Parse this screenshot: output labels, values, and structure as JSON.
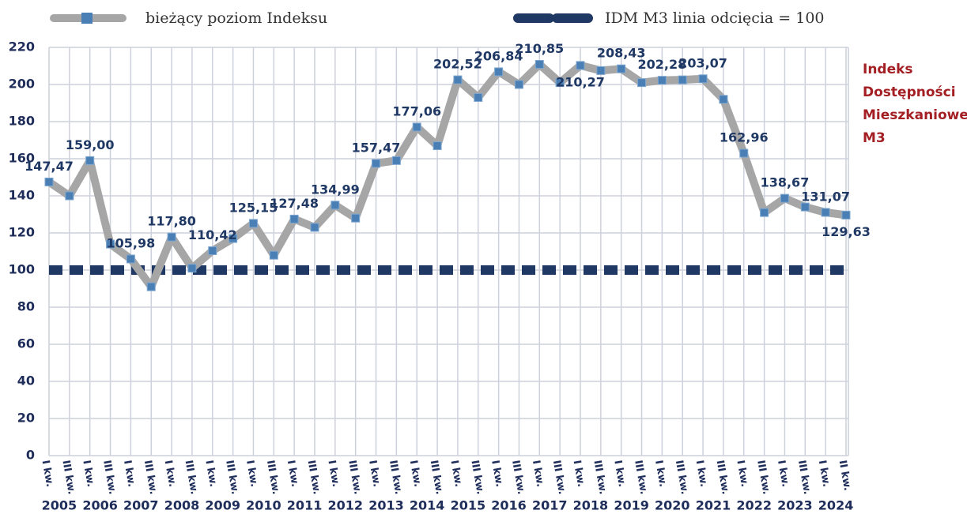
{
  "chart_data": {
    "type": "line",
    "categories": [
      "I kw.",
      "III kw.",
      "I kw.",
      "III kw.",
      "I kw.",
      "III kw.",
      "I kw.",
      "III kw.",
      "I kw.",
      "III kw.",
      "I kw.",
      "III kw.",
      "I kw.",
      "III kw.",
      "I kw.",
      "III kw.",
      "I kw.",
      "III kw.",
      "I kw.",
      "III kw.",
      "I kw.",
      "III kw.",
      "I kw.",
      "III kw.",
      "I kw.",
      "III kw.",
      "I kw.",
      "III kw.",
      "I kw.",
      "III kw.",
      "I kw.",
      "III kw.",
      "I kw.",
      "III kw.",
      "I kw.",
      "III kw.",
      "I kw.",
      "III kw.",
      "I kw.",
      "II kw."
    ],
    "years": [
      "2005",
      "2006",
      "2007",
      "2008",
      "2009",
      "2010",
      "2011",
      "2012",
      "2013",
      "2014",
      "2015",
      "2016",
      "2017",
      "2018",
      "2019",
      "2020",
      "2021",
      "2022",
      "2023",
      "2024"
    ],
    "series": [
      {
        "name": "bieżący poziom Indeksu",
        "color": "#a6a6a6",
        "marker_color": "#4a7fb5",
        "values": [
          147.47,
          140,
          159.0,
          114,
          105.98,
          91,
          117.8,
          101,
          110.42,
          117,
          125.15,
          108,
          127.48,
          123,
          134.99,
          128,
          157.47,
          159,
          177.06,
          167,
          202.52,
          193,
          206.84,
          200,
          210.85,
          201,
          210.27,
          207.5,
          208.43,
          201,
          202.28,
          202.5,
          203.07,
          192,
          162.96,
          131,
          138.67,
          134,
          131.07,
          129.63
        ],
        "value_labels": [
          "147,47",
          null,
          "159,00",
          null,
          "105,98",
          null,
          "117,80",
          null,
          "110,42",
          null,
          "125,15",
          null,
          "127,48",
          null,
          "134,99",
          null,
          "157,47",
          null,
          "177,06",
          null,
          "202,52",
          null,
          "206,84",
          null,
          "210,85",
          null,
          "210,27",
          null,
          "208,43",
          null,
          "202,28",
          null,
          "203,07",
          null,
          "162,96",
          null,
          "138,67",
          null,
          "131,07",
          "129,63"
        ]
      },
      {
        "name": "IDM M3 linia odcięcia = 100",
        "color": "#1f3864",
        "dashed": true,
        "values": [
          100,
          100,
          100,
          100,
          100,
          100,
          100,
          100,
          100,
          100,
          100,
          100,
          100,
          100,
          100,
          100,
          100,
          100,
          100,
          100,
          100,
          100,
          100,
          100,
          100,
          100,
          100,
          100,
          100,
          100,
          100,
          100,
          100,
          100,
          100,
          100,
          100,
          100,
          100,
          100
        ]
      }
    ],
    "annotation": [
      "Indeks",
      "Dostępności",
      "Mieszkaniowej",
      "M3"
    ],
    "highlight_color": "#a31f23",
    "ylim": [
      0,
      220
    ],
    "yticks": [
      0,
      20,
      40,
      60,
      80,
      100,
      120,
      140,
      160,
      180,
      200,
      220
    ],
    "grid": true
  }
}
